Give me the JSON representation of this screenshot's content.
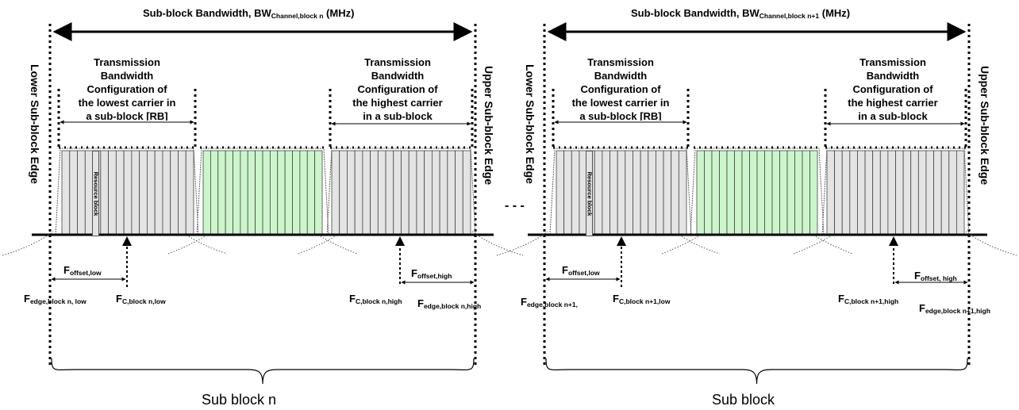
{
  "left": {
    "title": {
      "pre": "Sub-block Bandwidth, ",
      "bw": "BW",
      "sub": "Channel,block n",
      "post": " (MHz)"
    },
    "lower_edge": "Lower Sub-block Edge",
    "upper_edge": "Upper Sub-block Edge",
    "tb_low_lines": [
      "Transmission",
      "Bandwidth",
      "Configuration of",
      "the lowest carrier in",
      "a sub-block  [RB]"
    ],
    "tb_high_lines": [
      "Transmission",
      "Bandwidth",
      "Configuration of",
      "the highest carrier",
      "in a sub-block"
    ],
    "resource_block": "Resource block",
    "f_offset_low": {
      "main": "F",
      "sub": "offset,low"
    },
    "f_offset_high": {
      "main": "F",
      "sub": "offset,high"
    },
    "f_edge_low": {
      "main": "F",
      "sub": "edge,block n, low"
    },
    "fc_low": {
      "main": "F",
      "sub": "C,block n,low"
    },
    "fc_high": {
      "main": "F",
      "sub": "C,block n,high"
    },
    "f_edge_high": {
      "main": "F",
      "sub": "edge,block n,high"
    },
    "block_label": "Sub block n"
  },
  "right": {
    "title": {
      "pre": "Sub-block Bandwidth, ",
      "bw": "BW",
      "sub": "Channel,block n+1",
      "post": " (MHz)"
    },
    "lower_edge": "Lower Sub-block Edge",
    "upper_edge": "Upper Sub-block Edge",
    "tb_low_lines": [
      "Transmission",
      "Bandwidth",
      "Configuration of",
      "the lowest carrier in",
      "a sub-block  [RB]"
    ],
    "tb_high_lines": [
      "Transmission",
      "Bandwidth",
      "Configuration of",
      "the highest carrier",
      "in a sub-block"
    ],
    "resource_block": "Resource block",
    "f_offset_low": {
      "main": "F",
      "sub": "offset,low"
    },
    "f_offset_high": {
      "main": "F",
      "sub": "offset, high"
    },
    "f_edge_low": {
      "main": "F",
      "sub": "edge,block n+1,"
    },
    "fc_low": {
      "main": "F",
      "sub": "C,block n+1,low"
    },
    "fc_high": {
      "main": "F",
      "sub": "C,block n+1,high"
    },
    "f_edge_high": {
      "main": "F",
      "sub": "edge,block n+1,high"
    },
    "block_label": "Sub block"
  },
  "separator": "- - -",
  "colors": {
    "rb_grey": "#e4e4e4",
    "rb_green": "#ccf5cc",
    "line": "#000000"
  }
}
